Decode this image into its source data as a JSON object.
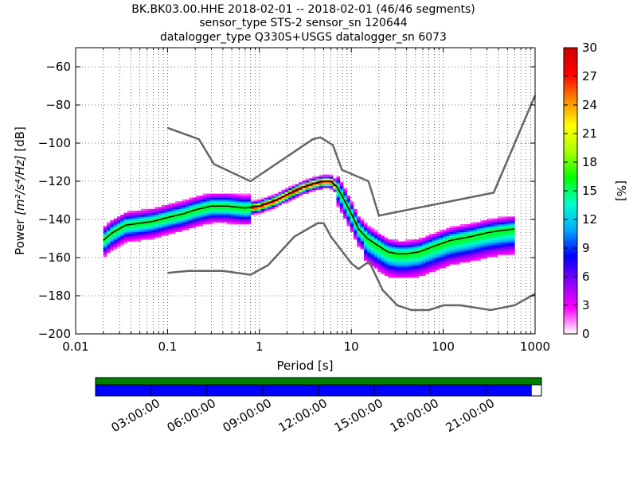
{
  "title_lines": [
    "BK.BK03.00.HHE   2018-02-01 -- 2018-02-01  (46/46 segments)",
    "sensor_type STS-2 sensor_sn 120644",
    "datalogger_type Q330S+USGS datalogger_sn 6073"
  ],
  "chart_data": {
    "type": "heatmap",
    "xlabel": "Period [s]",
    "ylabel_prefix": "Power ",
    "ylabel_math": "[m²/s⁴/Hz]",
    "ylabel_suffix": " [dB]",
    "xscale": "log",
    "xlim": [
      0.01,
      1000
    ],
    "ylim": [
      -200,
      -50
    ],
    "x_ticks": [
      0.01,
      0.1,
      1,
      10,
      100,
      1000
    ],
    "x_tick_labels": [
      "0.01",
      "0.1",
      "1",
      "10",
      "100",
      "1000"
    ],
    "y_ticks": [
      -200,
      -180,
      -160,
      -140,
      -120,
      -100,
      -80,
      -60
    ],
    "y_tick_labels": [
      "−200",
      "−180",
      "−160",
      "−140",
      "−120",
      "−100",
      "−80",
      "−60"
    ],
    "grid": true,
    "colorbar": {
      "label": "[%]",
      "range": [
        0,
        30
      ],
      "ticks": [
        0,
        3,
        6,
        9,
        12,
        15,
        18,
        21,
        24,
        27,
        30
      ],
      "colors": [
        "#ffffff",
        "#ff00ff",
        "#8800ff",
        "#0000ff",
        "#00aaff",
        "#00ffcc",
        "#00ff00",
        "#aaff00",
        "#ffff00",
        "#ff8800",
        "#ff0000",
        "#cc0000"
      ]
    },
    "noise_model_high": [
      [
        0.1,
        -92
      ],
      [
        0.22,
        -98
      ],
      [
        0.32,
        -111
      ],
      [
        0.8,
        -120
      ],
      [
        3.8,
        -98
      ],
      [
        4.6,
        -97
      ],
      [
        6.3,
        -101
      ],
      [
        7.9,
        -114
      ],
      [
        15.4,
        -120
      ],
      [
        20,
        -138
      ],
      [
        354,
        -126
      ],
      [
        10000,
        -75
      ]
    ],
    "noise_model_low": [
      [
        0.1,
        -168
      ],
      [
        0.17,
        -167
      ],
      [
        0.4,
        -167
      ],
      [
        0.8,
        -169
      ],
      [
        1.24,
        -164
      ],
      [
        2.4,
        -149
      ],
      [
        4.3,
        -142
      ],
      [
        5,
        -142
      ],
      [
        6,
        -149
      ],
      [
        10,
        -163
      ],
      [
        12,
        -166
      ],
      [
        15.6,
        -162
      ],
      [
        21.9,
        -177
      ],
      [
        31.6,
        -185
      ],
      [
        45,
        -187.5
      ],
      [
        70,
        -187.5
      ],
      [
        101,
        -185
      ],
      [
        154,
        -185
      ],
      [
        328,
        -187.5
      ],
      [
        600,
        -185
      ],
      [
        1000,
        -179
      ]
    ],
    "mean_psd": [
      [
        0.02,
        -151
      ],
      [
        0.025,
        -147
      ],
      [
        0.035,
        -143
      ],
      [
        0.05,
        -142
      ],
      [
        0.07,
        -141
      ],
      [
        0.1,
        -139
      ],
      [
        0.15,
        -137
      ],
      [
        0.2,
        -135
      ],
      [
        0.3,
        -133
      ],
      [
        0.45,
        -133
      ],
      [
        0.7,
        -134
      ],
      [
        1,
        -133
      ],
      [
        1.5,
        -130
      ],
      [
        2,
        -127
      ],
      [
        3,
        -123
      ],
      [
        4,
        -121
      ],
      [
        5,
        -120
      ],
      [
        6,
        -120
      ],
      [
        7,
        -123
      ],
      [
        8,
        -128
      ],
      [
        10,
        -137
      ],
      [
        12,
        -145
      ],
      [
        15,
        -150
      ],
      [
        20,
        -154
      ],
      [
        25,
        -157
      ],
      [
        32,
        -158
      ],
      [
        40,
        -158
      ],
      [
        55,
        -157
      ],
      [
        80,
        -154
      ],
      [
        120,
        -151
      ],
      [
        200,
        -149
      ],
      [
        300,
        -147
      ],
      [
        400,
        -146
      ],
      [
        600,
        -145
      ]
    ],
    "spread_high_db": 6,
    "spread_low_db": 8
  },
  "time_axis": {
    "tick_labels": [
      "03:00:00",
      "06:00:00",
      "09:00:00",
      "12:00:00",
      "15:00:00",
      "18:00:00",
      "21:00:00"
    ],
    "coverage_fraction": 0.979,
    "data_color": "#0000ff",
    "top_strip_color": "#008000"
  }
}
